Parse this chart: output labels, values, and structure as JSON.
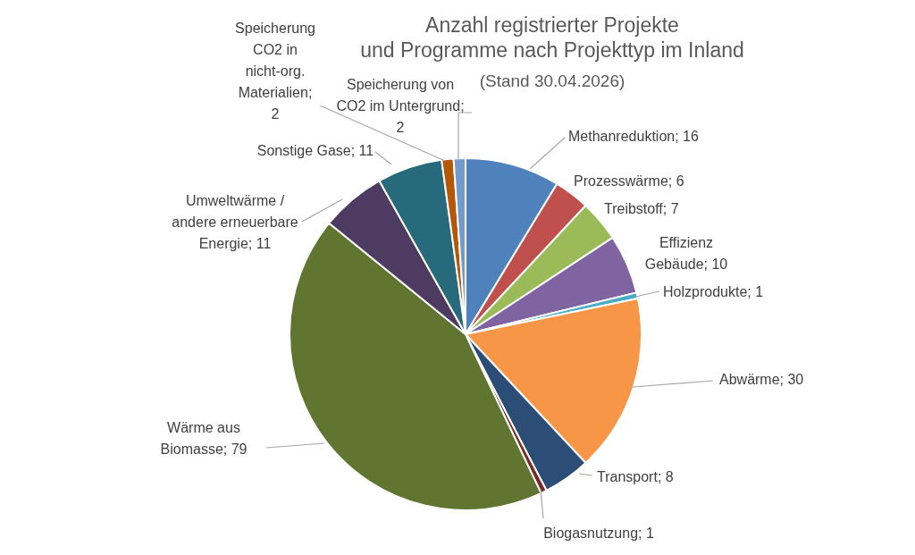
{
  "chart_data": {
    "type": "pie",
    "title": "Anzahl registrierter Projekte\nund Programme nach Projekttyp im Inland",
    "subtitle": "(Stand 30.04.2026)",
    "categories": [
      "Methanreduktion",
      "Prozesswärme",
      "Treibstoff",
      "Effizienz\nGebäude",
      "Holzprodukte",
      "Abwärme",
      "Transport",
      "Biogasnutzung",
      "Wärme aus\nBiomasse",
      "Umweltwärme /\nandere erneuerbare\nEnergie",
      "Sonstige Gase",
      "Speicherung\nCO2 in\nnicht-org.\nMaterialien",
      "Speicherung von\nCO2 im Untergrund"
    ],
    "values": [
      16,
      6,
      7,
      10,
      1,
      30,
      8,
      1,
      79,
      11,
      11,
      2,
      2
    ],
    "value_labels": [
      "; 16",
      "; 6",
      "; 7",
      "; 10",
      "; 1",
      "; 30",
      "; 8",
      "; 1",
      "; 79",
      "; 11",
      "; 11",
      ";\n2",
      ";\n2"
    ],
    "colors": [
      "#4f81bd",
      "#c0504d",
      "#9bbb59",
      "#8064a2",
      "#4bacc6",
      "#f79646",
      "#2c4d75",
      "#772c2a",
      "#5f7530",
      "#4d3b62",
      "#276a7c",
      "#b65708",
      "#729aca"
    ]
  }
}
